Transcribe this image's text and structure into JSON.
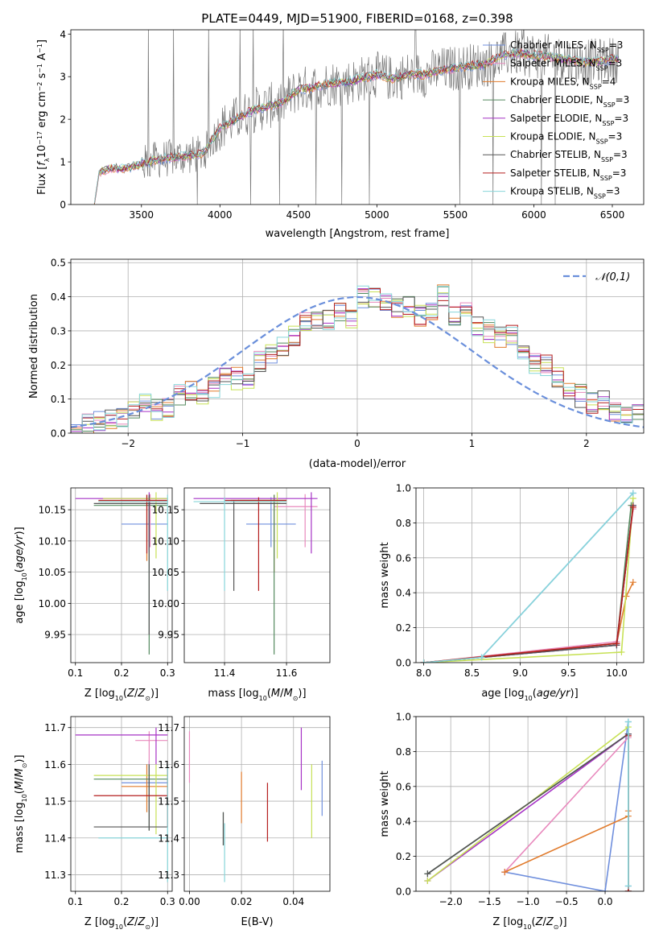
{
  "colors": {
    "chabrier_miles": "#6f8fdd",
    "salpeter_miles": "#e889bd",
    "kroupa_miles": "#e17b2c",
    "chabrier_elodie": "#53895e",
    "salpeter_elodie": "#a633c6",
    "kroupa_elodie": "#c7e155",
    "chabrier_stelib": "#555555",
    "salpeter_stelib": "#b51f1f",
    "kroupa_stelib": "#87d6da",
    "data": "#7a7a7a",
    "normal": "#6a8fdb"
  },
  "chart_data": [
    {
      "id": "spectrum",
      "type": "line",
      "title": "PLATE=0449, MJD=51900, FIBERID=0168, z=0.398",
      "xlabel": "wavelength [Angstrom, rest frame]",
      "ylabel": "Flux [f_λ10^-17 erg cm^-2 s^-1 A^-1]",
      "xlim": [
        3050,
        6700
      ],
      "ylim": [
        0,
        4.1
      ],
      "xticks": [
        3500,
        4000,
        4500,
        5000,
        5500,
        6000,
        6500
      ],
      "yticks": [
        0,
        1,
        2,
        3,
        4
      ],
      "legend_location": "upper right",
      "legend": [
        "Chabrier MILES, N_SSP=3",
        "Salpeter MILES, N_SSP=3",
        "Kroupa MILES, N_SSP=4",
        "Chabrier ELODIE, N_SSP=3",
        "Salpeter ELODIE, N_SSP=3",
        "Kroupa ELODIE, N_SSP=3",
        "Chabrier STELIB, N_SSP=3",
        "Salpeter STELIB, N_SSP=3",
        "Kroupa STELIB, N_SSP=3"
      ],
      "continuum_approx": {
        "x": [
          3200,
          3230,
          3300,
          3400,
          3500,
          3600,
          3700,
          3800,
          3900,
          4000,
          4100,
          4200,
          4300,
          4400,
          4500,
          4600,
          4700,
          4800,
          4900,
          5000,
          5100,
          5200,
          5300,
          5400,
          5500,
          5600,
          5700,
          5800,
          5900,
          6000,
          6100,
          6200,
          6300,
          6400,
          6500
        ],
        "y": [
          0,
          0.75,
          0.85,
          0.85,
          0.95,
          1.05,
          1.1,
          1.15,
          1.2,
          1.8,
          2.0,
          2.2,
          2.3,
          2.4,
          2.7,
          2.75,
          2.85,
          2.85,
          2.95,
          3.05,
          2.95,
          3.05,
          3.05,
          3.15,
          3.2,
          3.25,
          3.3,
          3.5,
          3.55,
          3.5,
          3.45,
          3.4,
          3.35,
          3.35,
          3.4
        ]
      }
    },
    {
      "id": "residuals",
      "type": "line",
      "xlabel": "(data-model)/error",
      "ylabel": "Normed distribution",
      "xlim": [
        -2.5,
        2.5
      ],
      "ylim": [
        0,
        0.51
      ],
      "xticks": [
        -2,
        -1,
        0,
        1,
        2
      ],
      "yticks": [
        0.0,
        0.1,
        0.2,
        0.3,
        0.4,
        0.5
      ],
      "legend": [
        "𝒩(0,1)"
      ],
      "legend_location": "upper right",
      "histogram_approx": {
        "x": [
          -2.5,
          -2.4,
          -2.3,
          -2.2,
          -2.1,
          -2.0,
          -1.9,
          -1.8,
          -1.7,
          -1.6,
          -1.5,
          -1.4,
          -1.3,
          -1.2,
          -1.1,
          -1.0,
          -0.9,
          -0.8,
          -0.7,
          -0.6,
          -0.5,
          -0.4,
          -0.3,
          -0.2,
          -0.1,
          0.0,
          0.1,
          0.2,
          0.3,
          0.4,
          0.5,
          0.6,
          0.7,
          0.8,
          0.9,
          1.0,
          1.1,
          1.2,
          1.3,
          1.4,
          1.5,
          1.6,
          1.7,
          1.8,
          1.9,
          2.0,
          2.1,
          2.2,
          2.3,
          2.4
        ],
        "y": [
          0.02,
          0.03,
          0.04,
          0.04,
          0.05,
          0.07,
          0.08,
          0.07,
          0.08,
          0.11,
          0.12,
          0.12,
          0.13,
          0.16,
          0.16,
          0.16,
          0.21,
          0.23,
          0.25,
          0.28,
          0.33,
          0.34,
          0.33,
          0.36,
          0.34,
          0.4,
          0.4,
          0.39,
          0.37,
          0.37,
          0.34,
          0.36,
          0.4,
          0.35,
          0.35,
          0.32,
          0.3,
          0.28,
          0.29,
          0.25,
          0.21,
          0.2,
          0.17,
          0.13,
          0.11,
          0.09,
          0.09,
          0.06,
          0.06,
          0.05
        ]
      }
    },
    {
      "id": "age_vs_z",
      "type": "scatter",
      "xlabel": "Z [log10(Z/Z⊙)]",
      "ylabel": "age  [log10(age/yr)]",
      "xlim": [
        0.09,
        0.31
      ],
      "ylim": [
        9.905,
        10.185
      ],
      "xticks": [
        0.1,
        0.2,
        0.3
      ],
      "yticks": [
        9.95,
        10.0,
        10.05,
        10.1,
        10.15
      ],
      "errorbars": [
        {
          "series": "chabrier_miles",
          "x": 0.26,
          "y": 10.127,
          "xerr": [
            0.2,
            0.3
          ],
          "yerr": [
            10.082,
            10.172
          ]
        },
        {
          "series": "salpeter_miles",
          "x": 0.262,
          "y": 10.165,
          "xerr": [
            0.2,
            0.3
          ],
          "yerr": [
            10.09,
            10.175
          ]
        },
        {
          "series": "kroupa_miles",
          "x": 0.255,
          "y": 10.163,
          "xerr": [
            0.15,
            0.3
          ],
          "yerr": [
            10.068,
            10.174
          ]
        },
        {
          "series": "chabrier_elodie",
          "x": 0.26,
          "y": 10.157,
          "xerr": [
            0.14,
            0.3
          ],
          "yerr": [
            9.918,
            10.17
          ]
        },
        {
          "series": "salpeter_elodie",
          "x": 0.26,
          "y": 10.168,
          "xerr": [
            0.1,
            0.3
          ],
          "yerr": [
            10.085,
            10.178
          ]
        },
        {
          "series": "kroupa_elodie",
          "x": 0.275,
          "y": 10.168,
          "xerr": [
            0.16,
            0.3
          ],
          "yerr": [
            10.072,
            10.178
          ]
        },
        {
          "series": "chabrier_stelib",
          "x": 0.26,
          "y": 10.16,
          "xerr": [
            0.14,
            0.3
          ],
          "yerr": [
            9.95,
            10.174
          ]
        },
        {
          "series": "salpeter_stelib",
          "x": 0.255,
          "y": 10.165,
          "xerr": [
            0.15,
            0.3
          ],
          "yerr": [
            10.08,
            10.174
          ]
        },
        {
          "series": "kroupa_stelib",
          "x": 0.3,
          "y": 10.163,
          "xerr": [
            0.15,
            0.3
          ],
          "yerr": [
            10.02,
            10.174
          ]
        }
      ]
    },
    {
      "id": "age_vs_mass",
      "type": "scatter",
      "xlabel": "mass [log10(M/M⊙)]",
      "ylabel": "",
      "xlim": [
        11.27,
        11.74
      ],
      "ylim": [
        9.905,
        10.185
      ],
      "xticks": [
        11.4,
        11.6
      ],
      "yticks": [
        9.95,
        10.0,
        10.05,
        10.1,
        10.15
      ],
      "errorbars": [
        {
          "series": "chabrier_miles",
          "x": 11.55,
          "y": 10.127,
          "xerr": [
            11.47,
            11.63
          ],
          "yerr": [
            10.09,
            10.17
          ]
        },
        {
          "series": "salpeter_miles",
          "x": 11.66,
          "y": 10.155,
          "xerr": [
            11.56,
            11.7
          ],
          "yerr": [
            10.09,
            10.175
          ]
        },
        {
          "series": "kroupa_miles",
          "x": 11.56,
          "y": 10.16,
          "xerr": [
            11.43,
            11.58
          ],
          "yerr": [
            10.05,
            10.174
          ]
        },
        {
          "series": "chabrier_elodie",
          "x": 11.56,
          "y": 10.165,
          "xerr": [
            11.42,
            11.6
          ],
          "yerr": [
            9.918,
            10.174
          ]
        },
        {
          "series": "salpeter_elodie",
          "x": 11.68,
          "y": 10.168,
          "xerr": [
            11.3,
            11.7
          ],
          "yerr": [
            10.08,
            10.178
          ]
        },
        {
          "series": "kroupa_elodie",
          "x": 11.57,
          "y": 10.165,
          "xerr": [
            11.45,
            11.6
          ],
          "yerr": [
            10.072,
            10.178
          ]
        },
        {
          "series": "chabrier_stelib",
          "x": 11.43,
          "y": 10.16,
          "xerr": [
            11.32,
            11.6
          ],
          "yerr": [
            10.02,
            10.165
          ]
        },
        {
          "series": "salpeter_stelib",
          "x": 11.51,
          "y": 10.165,
          "xerr": [
            11.4,
            11.6
          ],
          "yerr": [
            10.02,
            10.17
          ]
        },
        {
          "series": "kroupa_stelib",
          "x": 11.4,
          "y": 10.163,
          "xerr": [
            11.3,
            11.6
          ],
          "yerr": [
            10.02,
            10.17
          ]
        }
      ]
    },
    {
      "id": "massweight_vs_age",
      "type": "line",
      "xlabel": "age  [log10(age/yr)]",
      "ylabel": "mass weight",
      "xlim": [
        7.92,
        10.28
      ],
      "ylim": [
        0,
        1.0
      ],
      "xticks": [
        8.0,
        8.5,
        9.0,
        9.5,
        10.0
      ],
      "yticks": [
        0.0,
        0.2,
        0.4,
        0.6,
        0.8,
        1.0
      ],
      "series": [
        {
          "key": "chabrier_miles",
          "x": [
            8.0,
            8.6,
            10.17
          ],
          "y": [
            0.0,
            0.03,
            0.97
          ]
        },
        {
          "key": "salpeter_miles",
          "x": [
            8.0,
            10.0,
            10.17
          ],
          "y": [
            0.0,
            0.12,
            0.88
          ]
        },
        {
          "key": "kroupa_miles",
          "x": [
            8.0,
            10.0,
            10.1,
            10.17
          ],
          "y": [
            0.0,
            0.11,
            0.38,
            0.46
          ]
        },
        {
          "key": "chabrier_elodie",
          "x": [
            8.0,
            10.0,
            10.15
          ],
          "y": [
            0.0,
            0.1,
            0.9
          ]
        },
        {
          "key": "salpeter_elodie",
          "x": [
            8.0,
            10.0,
            10.17
          ],
          "y": [
            0.0,
            0.1,
            0.9
          ]
        },
        {
          "key": "kroupa_elodie",
          "x": [
            8.0,
            10.05,
            10.17
          ],
          "y": [
            0.0,
            0.06,
            0.94
          ]
        },
        {
          "key": "chabrier_stelib",
          "x": [
            8.0,
            10.0,
            10.17
          ],
          "y": [
            0.0,
            0.1,
            0.9
          ]
        },
        {
          "key": "salpeter_stelib",
          "x": [
            8.0,
            10.0,
            10.17
          ],
          "y": [
            0.0,
            0.11,
            0.89
          ]
        },
        {
          "key": "kroupa_stelib",
          "x": [
            8.0,
            8.6,
            10.17
          ],
          "y": [
            0.0,
            0.03,
            0.97
          ]
        }
      ]
    },
    {
      "id": "mass_vs_z",
      "type": "scatter",
      "xlabel": "Z [log10(Z/Z⊙)]",
      "ylabel": "mass [log10(M/M⊙)]",
      "xlim": [
        0.09,
        0.31
      ],
      "ylim": [
        11.255,
        11.73
      ],
      "xticks": [
        0.1,
        0.2,
        0.3
      ],
      "yticks": [
        11.3,
        11.4,
        11.5,
        11.6,
        11.7
      ],
      "errorbars": [
        {
          "series": "chabrier_miles",
          "x": 0.26,
          "y": 11.55,
          "xerr": [
            0.2,
            0.3
          ],
          "yerr": [
            11.47,
            11.61
          ]
        },
        {
          "series": "salpeter_miles",
          "x": 0.26,
          "y": 11.665,
          "xerr": [
            0.23,
            0.3
          ],
          "yerr": [
            11.6,
            11.69
          ]
        },
        {
          "series": "kroupa_miles",
          "x": 0.255,
          "y": 11.54,
          "xerr": [
            0.2,
            0.3
          ],
          "yerr": [
            11.47,
            11.6
          ]
        },
        {
          "series": "chabrier_elodie",
          "x": 0.26,
          "y": 11.56,
          "xerr": [
            0.14,
            0.3
          ],
          "yerr": [
            11.42,
            11.6
          ]
        },
        {
          "series": "salpeter_elodie",
          "x": 0.275,
          "y": 11.68,
          "xerr": [
            0.1,
            0.3
          ],
          "yerr": [
            11.6,
            11.7
          ]
        },
        {
          "series": "kroupa_elodie",
          "x": 0.275,
          "y": 11.57,
          "xerr": [
            0.14,
            0.3
          ],
          "yerr": [
            11.41,
            11.6
          ]
        },
        {
          "series": "chabrier_stelib",
          "x": 0.26,
          "y": 11.43,
          "xerr": [
            0.14,
            0.3
          ],
          "yerr": [
            11.42,
            11.6
          ]
        },
        {
          "series": "salpeter_stelib",
          "x": 0.3,
          "y": 11.515,
          "xerr": [
            0.14,
            0.3
          ],
          "yerr": [
            11.43,
            11.6
          ]
        },
        {
          "series": "kroupa_stelib",
          "x": 0.3,
          "y": 11.4,
          "xerr": [
            0.15,
            0.3
          ],
          "yerr": [
            11.28,
            11.6
          ]
        }
      ]
    },
    {
      "id": "mass_vs_ebv",
      "type": "scatter",
      "xlabel": "E(B-V)",
      "ylabel": "",
      "xlim": [
        -0.002,
        0.054
      ],
      "ylim": [
        11.255,
        11.73
      ],
      "xticks": [
        0.0,
        0.02,
        0.04
      ],
      "yticks": [
        11.3,
        11.4,
        11.5,
        11.6,
        11.7
      ],
      "errorbars": [
        {
          "series": "chabrier_miles",
          "x": 0.051,
          "y": 11.55,
          "yerr": [
            11.46,
            11.61
          ]
        },
        {
          "series": "salpeter_miles",
          "x": 0.0,
          "y": 11.62,
          "yerr": [
            11.55,
            11.69
          ]
        },
        {
          "series": "kroupa_miles",
          "x": 0.02,
          "y": 11.51,
          "yerr": [
            11.44,
            11.58
          ]
        },
        {
          "series": "chabrier_elodie",
          "x": 0.013,
          "y": 11.43,
          "yerr": [
            11.38,
            11.47
          ]
        },
        {
          "series": "salpeter_elodie",
          "x": 0.043,
          "y": 11.6,
          "yerr": [
            11.53,
            11.7
          ]
        },
        {
          "series": "kroupa_elodie",
          "x": 0.047,
          "y": 11.5,
          "yerr": [
            11.4,
            11.6
          ]
        },
        {
          "series": "chabrier_stelib",
          "x": 0.013,
          "y": 11.43,
          "yerr": [
            11.38,
            11.47
          ]
        },
        {
          "series": "salpeter_stelib",
          "x": 0.03,
          "y": 11.48,
          "yerr": [
            11.39,
            11.55
          ]
        },
        {
          "series": "kroupa_stelib",
          "x": 0.0135,
          "y": 11.35,
          "yerr": [
            11.28,
            11.44
          ]
        }
      ]
    },
    {
      "id": "massweight_vs_z",
      "type": "line",
      "xlabel": "Z [log10(Z/Z⊙)]",
      "ylabel": "mass weight",
      "xlim": [
        -2.45,
        0.5
      ],
      "ylim": [
        0,
        1.0
      ],
      "xticks": [
        -2.0,
        -1.5,
        -1.0,
        -0.5,
        0.0
      ],
      "yticks": [
        0.0,
        0.2,
        0.4,
        0.6,
        0.8,
        1.0
      ],
      "series": [
        {
          "key": "chabrier_miles",
          "x": [
            -1.3,
            0.0,
            0.3,
            0.3
          ],
          "y": [
            0.11,
            0.0,
            0.97,
            0.03
          ]
        },
        {
          "key": "salpeter_miles",
          "x": [
            -1.3,
            0.3,
            0.3
          ],
          "y": [
            0.11,
            0.88,
            0.0
          ]
        },
        {
          "key": "kroupa_miles",
          "x": [
            -1.3,
            0.3,
            0.3
          ],
          "y": [
            0.11,
            0.43,
            0.46
          ]
        },
        {
          "key": "chabrier_elodie",
          "x": [
            -2.3,
            0.3,
            0.3
          ],
          "y": [
            0.1,
            0.9,
            0.0
          ]
        },
        {
          "key": "salpeter_elodie",
          "x": [
            -2.3,
            0.3,
            0.3
          ],
          "y": [
            0.06,
            0.9,
            0.0
          ]
        },
        {
          "key": "kroupa_elodie",
          "x": [
            -2.3,
            0.3,
            0.3
          ],
          "y": [
            0.06,
            0.94,
            0.0
          ]
        },
        {
          "key": "chabrier_stelib",
          "x": [
            -2.3,
            0.3,
            0.3
          ],
          "y": [
            0.1,
            0.9,
            0.0
          ]
        },
        {
          "key": "salpeter_stelib",
          "x": [
            0.3,
            0.3
          ],
          "y": [
            0.0,
            0.89
          ]
        },
        {
          "key": "kroupa_stelib",
          "x": [
            0.3,
            0.3
          ],
          "y": [
            0.03,
            0.97
          ]
        }
      ]
    }
  ]
}
